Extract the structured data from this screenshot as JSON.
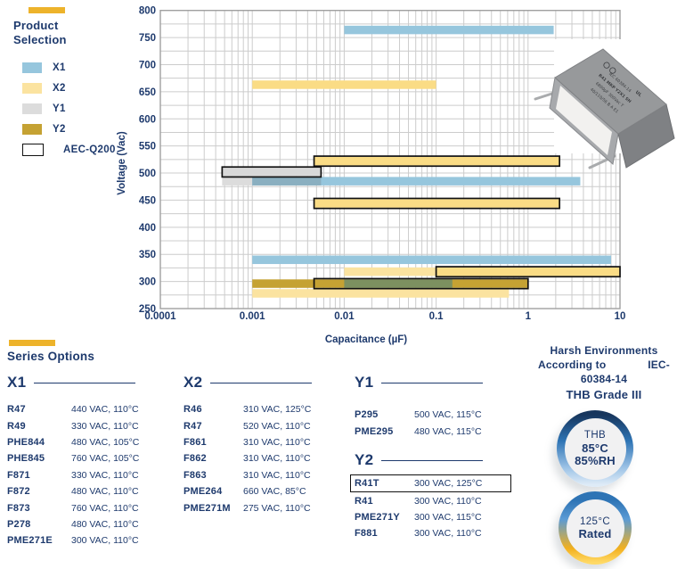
{
  "colors": {
    "navy": "#1E3A6D",
    "brand_gold": "#EDB32B",
    "x1_blue": "#96C6DD",
    "x2_yellow_light": "#FBE3A0",
    "x2_yellow_bright": "#FADC85",
    "y1_gray": "#DCDCDC",
    "y2_gold": "#C5A233",
    "overlap_blue_gray": "#8AAFC0",
    "overlap_green": "#7C9060",
    "grid": "#CCCCCC",
    "frame": "#A0A0A0",
    "aec_border": "#111111"
  },
  "legend": {
    "title": "Product Selection",
    "items": [
      {
        "label": "X1",
        "color": "#96C6DD",
        "bordered": false
      },
      {
        "label": "X2",
        "color": "#FBE3A0",
        "bordered": false
      },
      {
        "label": "Y1",
        "color": "#DCDCDC",
        "bordered": false
      },
      {
        "label": "Y2",
        "color": "#C5A233",
        "bordered": false
      },
      {
        "label": "AEC-Q200",
        "color": "#FFFFFF",
        "bordered": true
      }
    ]
  },
  "chart_data": {
    "type": "bar",
    "subtype": "horizontal-range-bars",
    "title": "",
    "xlabel": "Capacitance (µF)",
    "ylabel": "Voltage (Vac)",
    "xscale": "log",
    "xlim": [
      0.0001,
      10
    ],
    "ylim": [
      250,
      800
    ],
    "grid": true,
    "x_ticks": [
      "0.0001",
      "0.001",
      "0.01",
      "0.1",
      "1",
      "10"
    ],
    "y_ticks": [
      800,
      750,
      700,
      650,
      600,
      550,
      500,
      450,
      400,
      350,
      300,
      250
    ],
    "bars": [
      {
        "series": "X1",
        "voltage": 760,
        "cap_min": 0.01,
        "cap_max": 1.9,
        "v_pos": 764,
        "color": "#96C6DD",
        "aec_q200": false
      },
      {
        "series": "X2",
        "voltage": 660,
        "cap_min": 0.001,
        "cap_max": 0.1,
        "v_pos": 663,
        "color": "#FADC85",
        "aec_q200": false
      },
      {
        "series": "X2",
        "voltage": 520,
        "cap_min": 0.0047,
        "cap_max": 2.2,
        "v_pos": 522,
        "color": "#FADC85",
        "aec_q200": true
      },
      {
        "series": "Y1",
        "voltage": 500,
        "cap_min": 0.00047,
        "cap_max": 0.0056,
        "v_pos": 502,
        "color": "#D8D8D8",
        "aec_q200": true
      },
      {
        "series": "Y1",
        "voltage": 480,
        "cap_min": 0.00047,
        "cap_max": 0.0056,
        "v_pos": 485,
        "color": "#DCDCDC",
        "aec_q200": false
      },
      {
        "series": "X1",
        "voltage": 480,
        "cap_min": 0.001,
        "cap_max": 3.7,
        "v_pos": 485,
        "color": "#96C6DD",
        "aec_q200": false
      },
      {
        "series": "X2",
        "voltage": 440,
        "cap_min": 0.0047,
        "cap_max": 2.2,
        "v_pos": 444,
        "color": "#FADC85",
        "aec_q200": true
      },
      {
        "series": "X1",
        "voltage": 330,
        "cap_min": 0.001,
        "cap_max": 8.0,
        "v_pos": 340,
        "color": "#96C6DD",
        "aec_q200": false
      },
      {
        "series": "X2",
        "voltage": 310,
        "cap_min": 0.01,
        "cap_max": 0.1,
        "v_pos": 318,
        "color": "#FBE3A0",
        "aec_q200": false
      },
      {
        "series": "X2",
        "voltage": 310,
        "cap_min": 0.1,
        "cap_max": 10,
        "v_pos": 318,
        "color": "#FADC85",
        "aec_q200": true
      },
      {
        "series": "Y2",
        "voltage": 300,
        "cap_min": 0.001,
        "cap_max": 1.0,
        "v_pos": 296,
        "color": "#C5A233",
        "aec_q200": false
      },
      {
        "series": "Y2",
        "voltage": 300,
        "cap_min": 0.0047,
        "cap_max": 1.0,
        "v_pos": 296,
        "color": "none",
        "aec_q200": true
      },
      {
        "series": "X2",
        "voltage": 275,
        "cap_min": 0.001,
        "cap_max": 0.62,
        "v_pos": 278,
        "color": "#FBE3A0",
        "aec_q200": false
      }
    ],
    "overlaps": [
      {
        "note": "X1-over-Y1",
        "cap_min": 0.001,
        "cap_max": 0.0056,
        "v_pos": 485,
        "color": "#8AAFC0"
      },
      {
        "note": "X1-over-Y2",
        "cap_min": 0.01,
        "cap_max": 0.15,
        "v_pos": 296,
        "color": "#7C9060"
      }
    ]
  },
  "capacitor": {
    "lines": [
      "IEC 60384-14",
      "R41 MKP Y2X1 SH",
      "6800pF 300Vac T",
      "40/110/56 B A E1"
    ]
  },
  "series_options": {
    "title": "Series Options",
    "columns": [
      {
        "heading": "X1",
        "rows": [
          {
            "name": "R47",
            "spec": "440 VAC, 110°C",
            "highlight": false
          },
          {
            "name": "R49",
            "spec": "330 VAC, 110°C",
            "highlight": false
          },
          {
            "name": "PHE844",
            "spec": "480 VAC, 105°C",
            "highlight": false
          },
          {
            "name": "PHE845",
            "spec": "760 VAC, 105°C",
            "highlight": false
          },
          {
            "name": "F871",
            "spec": "330 VAC, 110°C",
            "highlight": false
          },
          {
            "name": "F872",
            "spec": "480 VAC, 110°C",
            "highlight": false
          },
          {
            "name": "F873",
            "spec": "760 VAC, 110°C",
            "highlight": false
          },
          {
            "name": "P278",
            "spec": "480 VAC, 110°C",
            "highlight": false
          },
          {
            "name": "PME271E",
            "spec": "300 VAC, 110°C",
            "highlight": false
          }
        ]
      },
      {
        "heading": "X2",
        "rows": [
          {
            "name": "R46",
            "spec": "310 VAC, 125°C",
            "highlight": false
          },
          {
            "name": "R47",
            "spec": "520 VAC, 110°C",
            "highlight": false
          },
          {
            "name": "F861",
            "spec": "310 VAC, 110°C",
            "highlight": false
          },
          {
            "name": "F862",
            "spec": "310 VAC, 110°C",
            "highlight": false
          },
          {
            "name": "F863",
            "spec": "310 VAC, 110°C",
            "highlight": false
          },
          {
            "name": "PME264",
            "spec": "660 VAC, 85°C",
            "highlight": false
          },
          {
            "name": "PME271M",
            "spec": "275 VAC, 110°C",
            "highlight": false
          }
        ]
      },
      {
        "heading": "Y1",
        "rows": [
          {
            "name": "P295",
            "spec": "500 VAC, 115°C",
            "highlight": false
          },
          {
            "name": "PME295",
            "spec": "480 VAC, 115°C",
            "highlight": false
          }
        ]
      },
      {
        "heading": "Y2",
        "rows": [
          {
            "name": "R41T",
            "spec": "300 VAC, 125°C",
            "highlight": true
          },
          {
            "name": "R41",
            "spec": "300 VAC, 110°C",
            "highlight": false
          },
          {
            "name": "PME271Y",
            "spec": "300 VAC, 115°C",
            "highlight": false
          },
          {
            "name": "F881",
            "spec": "300 VAC, 110°C",
            "highlight": false
          }
        ]
      }
    ]
  },
  "harsh": {
    "line1": "Harsh Environments",
    "line2a": "According to",
    "line2b": "IEC-",
    "line3": "60384-14",
    "line4": "THB Grade III",
    "badges": [
      {
        "id": "thb",
        "lines": [
          "THB",
          "85°C",
          "85%RH"
        ]
      },
      {
        "id": "rated125",
        "lines": [
          "125°C",
          "Rated"
        ]
      }
    ]
  }
}
